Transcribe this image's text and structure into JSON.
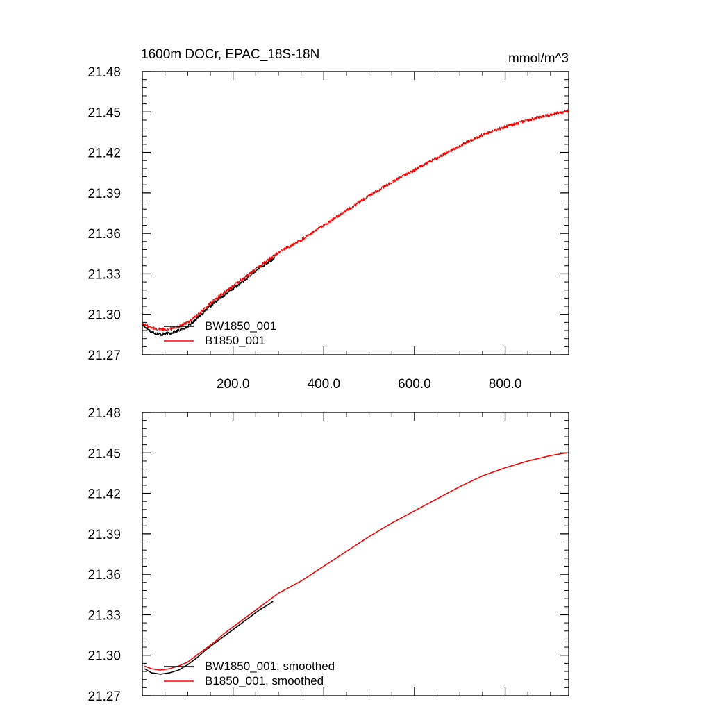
{
  "chart_data": [
    {
      "type": "line",
      "title": "1600m DOCr, EPAC_18S-18N",
      "units": "mmol/m^3",
      "xlabel": "",
      "ylabel": "",
      "xlim": [
        0,
        940
      ],
      "ylim": [
        21.27,
        21.48
      ],
      "x_ticks": [
        200,
        400,
        600,
        800
      ],
      "x_tick_labels": [
        "200.0",
        "400.0",
        "600.0",
        "800.0"
      ],
      "y_ticks": [
        21.27,
        21.3,
        21.33,
        21.36,
        21.39,
        21.42,
        21.45,
        21.48
      ],
      "y_tick_labels": [
        "21.27",
        "21.30",
        "21.33",
        "21.36",
        "21.39",
        "21.42",
        "21.45",
        "21.48"
      ],
      "grid": false,
      "legend_position": "bottom-left",
      "series": [
        {
          "name": "BW1850_001",
          "color": "#000000",
          "noisy": true,
          "x": [
            1,
            20,
            40,
            60,
            80,
            100,
            120,
            140,
            160,
            180,
            200,
            220,
            240,
            260,
            280,
            292
          ],
          "y": [
            21.292,
            21.287,
            21.285,
            21.286,
            21.288,
            21.291,
            21.297,
            21.303,
            21.309,
            21.314,
            21.319,
            21.324,
            21.329,
            21.335,
            21.339,
            21.342
          ]
        },
        {
          "name": "B1850_001",
          "color": "#ff0000",
          "noisy": true,
          "x": [
            1,
            20,
            40,
            60,
            80,
            100,
            120,
            140,
            160,
            180,
            200,
            220,
            240,
            260,
            280,
            300,
            350,
            400,
            450,
            500,
            550,
            600,
            650,
            700,
            750,
            800,
            850,
            900,
            940
          ],
          "y": [
            21.293,
            21.29,
            21.289,
            21.289,
            21.291,
            21.294,
            21.299,
            21.305,
            21.311,
            21.316,
            21.321,
            21.326,
            21.331,
            21.336,
            21.341,
            21.346,
            21.355,
            21.366,
            21.377,
            21.388,
            21.398,
            21.407,
            21.416,
            21.425,
            21.433,
            21.439,
            21.444,
            21.448,
            21.451
          ]
        }
      ]
    },
    {
      "type": "line",
      "title": "",
      "xlabel": "",
      "ylabel": "",
      "xlim": [
        0,
        940
      ],
      "ylim": [
        21.27,
        21.48
      ],
      "x_ticks": [
        200,
        400,
        600,
        800
      ],
      "y_ticks": [
        21.27,
        21.3,
        21.33,
        21.36,
        21.39,
        21.42,
        21.45,
        21.48
      ],
      "y_tick_labels": [
        "21.27",
        "21.30",
        "21.33",
        "21.36",
        "21.39",
        "21.42",
        "21.45",
        "21.48"
      ],
      "grid": false,
      "legend_position": "bottom-left",
      "series": [
        {
          "name": "BW1850_001, smoothed",
          "color": "#000000",
          "noisy": false,
          "x": [
            5,
            20,
            40,
            60,
            80,
            100,
            120,
            140,
            160,
            180,
            200,
            220,
            240,
            260,
            280,
            288
          ],
          "y": [
            21.29,
            21.287,
            21.286,
            21.287,
            21.289,
            21.293,
            21.298,
            21.304,
            21.309,
            21.314,
            21.319,
            21.324,
            21.329,
            21.334,
            21.338,
            21.34
          ]
        },
        {
          "name": "B1850_001, smoothed",
          "color": "#ff0000",
          "noisy": false,
          "x": [
            5,
            20,
            40,
            60,
            80,
            100,
            120,
            140,
            160,
            180,
            200,
            220,
            240,
            260,
            280,
            300,
            350,
            400,
            450,
            500,
            550,
            600,
            650,
            700,
            750,
            800,
            850,
            900,
            935
          ],
          "y": [
            21.292,
            21.29,
            21.289,
            21.29,
            21.292,
            21.295,
            21.3,
            21.305,
            21.31,
            21.316,
            21.321,
            21.326,
            21.331,
            21.336,
            21.341,
            21.346,
            21.355,
            21.366,
            21.377,
            21.388,
            21.398,
            21.407,
            21.416,
            21.425,
            21.433,
            21.439,
            21.444,
            21.448,
            21.45
          ]
        }
      ]
    }
  ]
}
